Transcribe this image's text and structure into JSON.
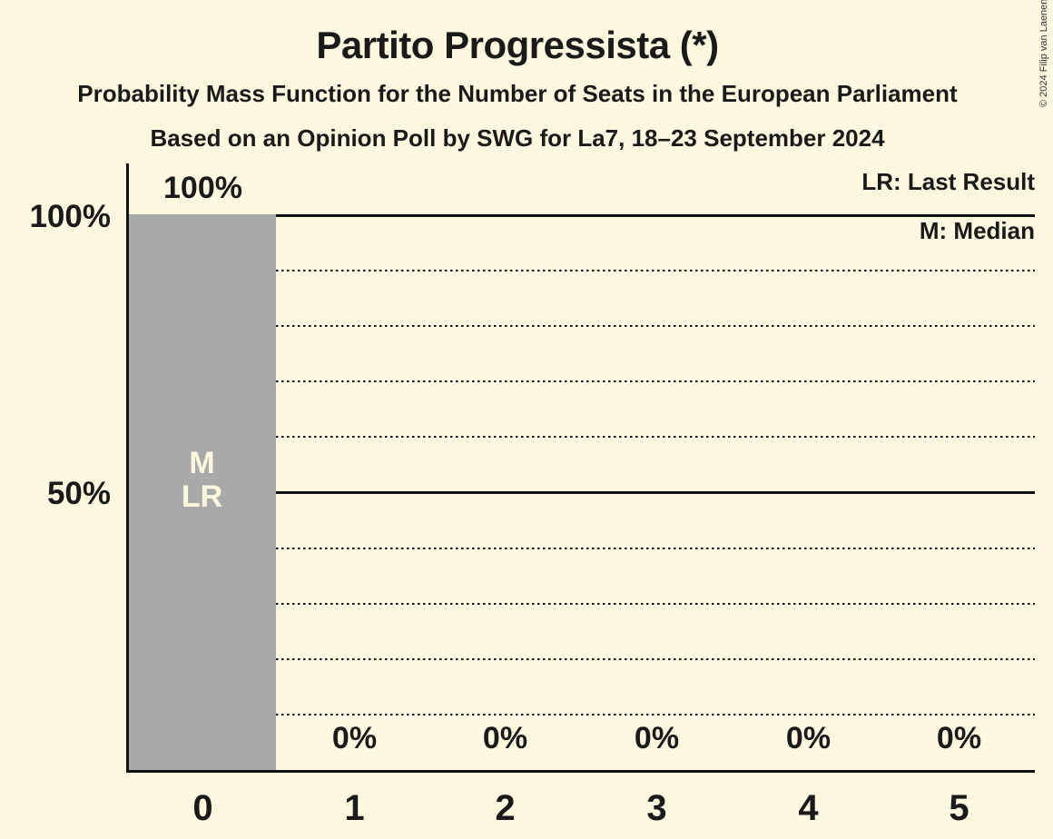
{
  "page": {
    "background_color": "#FDF8DF",
    "text_color": "#1A1A1A",
    "bar_color": "#A9A9A9"
  },
  "header": {
    "title": "Partito Progressista (*)",
    "subtitle1": "Probability Mass Function for the Number of Seats in the European Parliament",
    "subtitle2": "Based on an Opinion Poll by SWG for La7, 18–23 September 2024"
  },
  "legend": {
    "last_result": "LR: Last Result",
    "median": "M: Median"
  },
  "copyright": "© 2024 Filip van Laenen",
  "chart_data": {
    "type": "bar",
    "title": "Partito Progressista (*)",
    "categories": [
      "0",
      "1",
      "2",
      "3",
      "4",
      "5"
    ],
    "values": [
      100,
      0,
      0,
      0,
      0,
      0
    ],
    "value_labels": [
      "100%",
      "0%",
      "0%",
      "0%",
      "0%",
      "0%"
    ],
    "ylim": [
      0,
      100
    ],
    "y_ticks": [
      "100%",
      "50%"
    ],
    "y_tick_values": [
      100,
      50
    ],
    "gridlines": {
      "solid_percent": [
        100,
        50
      ],
      "dotted_percent": [
        90,
        80,
        70,
        60,
        40,
        30,
        20,
        10
      ]
    },
    "bar_color": "#A9A9A9",
    "annotations": {
      "median_label": "M",
      "last_result_label": "LR",
      "annotated_category": "0"
    },
    "legend_position": "top-right",
    "grid": "horizontal-only"
  }
}
